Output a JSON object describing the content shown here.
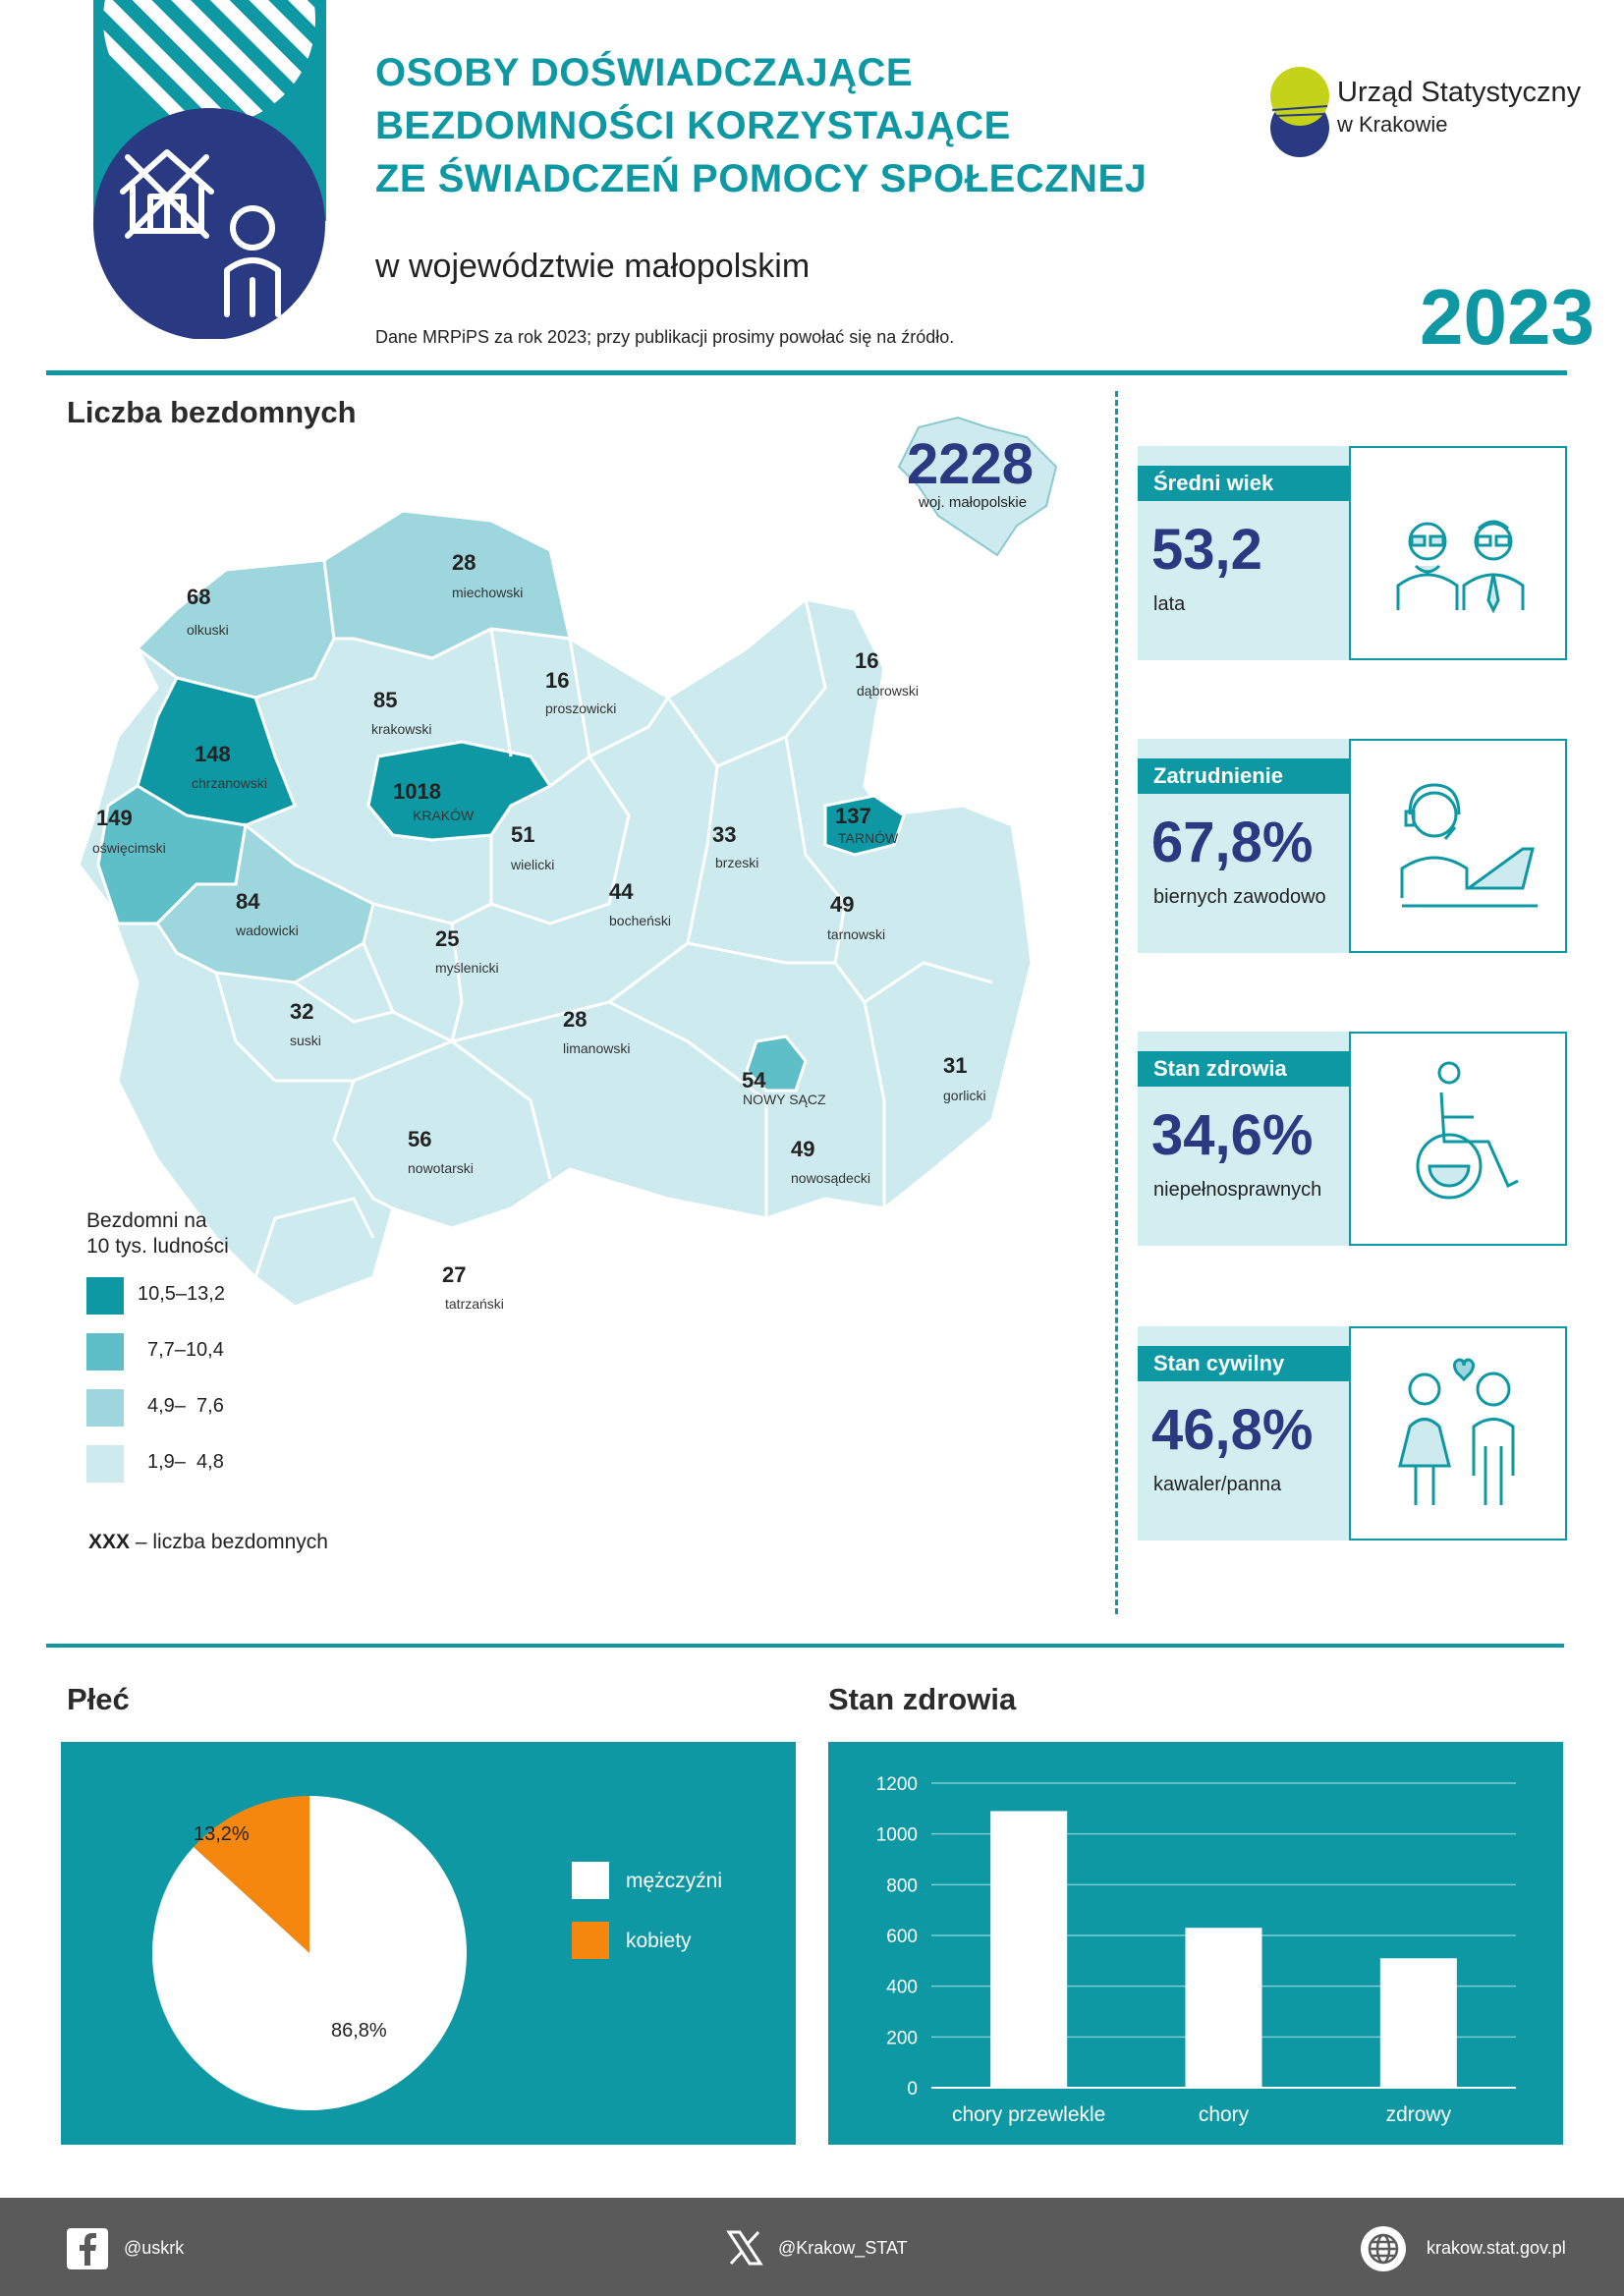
{
  "header": {
    "title_lines": [
      "OSOBY DOŚWIADCZAJĄCE",
      "BEZDOMNOŚCI KORZYSTAJĄCE",
      "ZE ŚWIADCZEŃ POMOCY SPOŁECZNEJ"
    ],
    "subtitle": "w województwie małopolskim",
    "source_note": "Dane MRPiPS za rok 2023; przy publikacji prosimy powołać się na źródło.",
    "year": "2023",
    "logo_name": "Urząd Statystyczny",
    "logo_city": "w Krakowie"
  },
  "map_section": {
    "title": "Liczba bezdomnych",
    "total_value": "2228",
    "total_label": "woj. małopolskie",
    "legend_title_line1": "Bezdomni na",
    "legend_title_line2": "10 tys. ludności",
    "legend": [
      {
        "label": "10,5–13,2",
        "color": "#0e98a3"
      },
      {
        "label": "7,7–10,4",
        "color": "#5fbfc8"
      },
      {
        "label": "4,9–  7,6",
        "color": "#9dd6dc"
      },
      {
        "label": "1,9–  4,8",
        "color": "#cdebee"
      }
    ],
    "legend_note_key": "XXX",
    "legend_note_text": " – liczba bezdomnych",
    "powiats": [
      {
        "name": "olkuski",
        "value": "68"
      },
      {
        "name": "miechowski",
        "value": "28"
      },
      {
        "name": "krakowski",
        "value": "85"
      },
      {
        "name": "proszowicki",
        "value": "16"
      },
      {
        "name": "dąbrowski",
        "value": "16"
      },
      {
        "name": "chrzanowski",
        "value": "148"
      },
      {
        "name": "KRAKÓW",
        "value": "1018"
      },
      {
        "name": "oświęcimski",
        "value": "149"
      },
      {
        "name": "wielicki",
        "value": "51"
      },
      {
        "name": "brzeski",
        "value": "33"
      },
      {
        "name": "TARNÓW",
        "value": "137"
      },
      {
        "name": "wadowicki",
        "value": "84"
      },
      {
        "name": "bocheński",
        "value": "44"
      },
      {
        "name": "tarnowski",
        "value": "49"
      },
      {
        "name": "myślenicki",
        "value": "25"
      },
      {
        "name": "suski",
        "value": "32"
      },
      {
        "name": "limanowski",
        "value": "28"
      },
      {
        "name": "NOWY SĄCZ",
        "value": "54"
      },
      {
        "name": "gorlicki",
        "value": "31"
      },
      {
        "name": "nowotarski",
        "value": "56"
      },
      {
        "name": "nowosądecki",
        "value": "49"
      },
      {
        "name": "tatrzański",
        "value": "27"
      }
    ]
  },
  "stats": [
    {
      "title": "Średni wiek",
      "value": "53,2",
      "sub": "lata",
      "icon": "people-icon"
    },
    {
      "title": "Zatrudnienie",
      "value": "67,8%",
      "sub": "biernych zawodowo",
      "icon": "worker-icon"
    },
    {
      "title": "Stan zdrowia",
      "value": "34,6%",
      "sub": "niepełnosprawnych",
      "icon": "wheelchair-icon"
    },
    {
      "title": "Stan cywilny",
      "value": "46,8%",
      "sub": "kawaler/panna",
      "icon": "couple-icon"
    }
  ],
  "gender_section": {
    "title": "Płeć",
    "chart_data": {
      "type": "pie",
      "slices": [
        {
          "name": "mężczyźni",
          "value": 86.8,
          "label": "86,8%",
          "color": "#ffffff"
        },
        {
          "name": "kobiety",
          "value": 13.2,
          "label": "13,2%",
          "color": "#f5870f"
        }
      ]
    }
  },
  "health_section": {
    "title": "Stan zdrowia",
    "chart_data": {
      "type": "bar",
      "categories": [
        "chory przewlekle",
        "chory",
        "zdrowy"
      ],
      "values": [
        1090,
        630,
        510
      ],
      "ylim": [
        0,
        1200
      ],
      "yticks": [
        "0",
        "200",
        "400",
        "600",
        "800",
        "1000",
        "1200"
      ],
      "grid": true
    }
  },
  "footer": {
    "facebook": "@uskrk",
    "x": "@Krakow_STAT",
    "web": "krakow.stat.gov.pl"
  },
  "colors": {
    "teal": "#0e98a3",
    "navy": "#2a3a82",
    "orange": "#f5870f",
    "lime": "#c4d31a"
  }
}
